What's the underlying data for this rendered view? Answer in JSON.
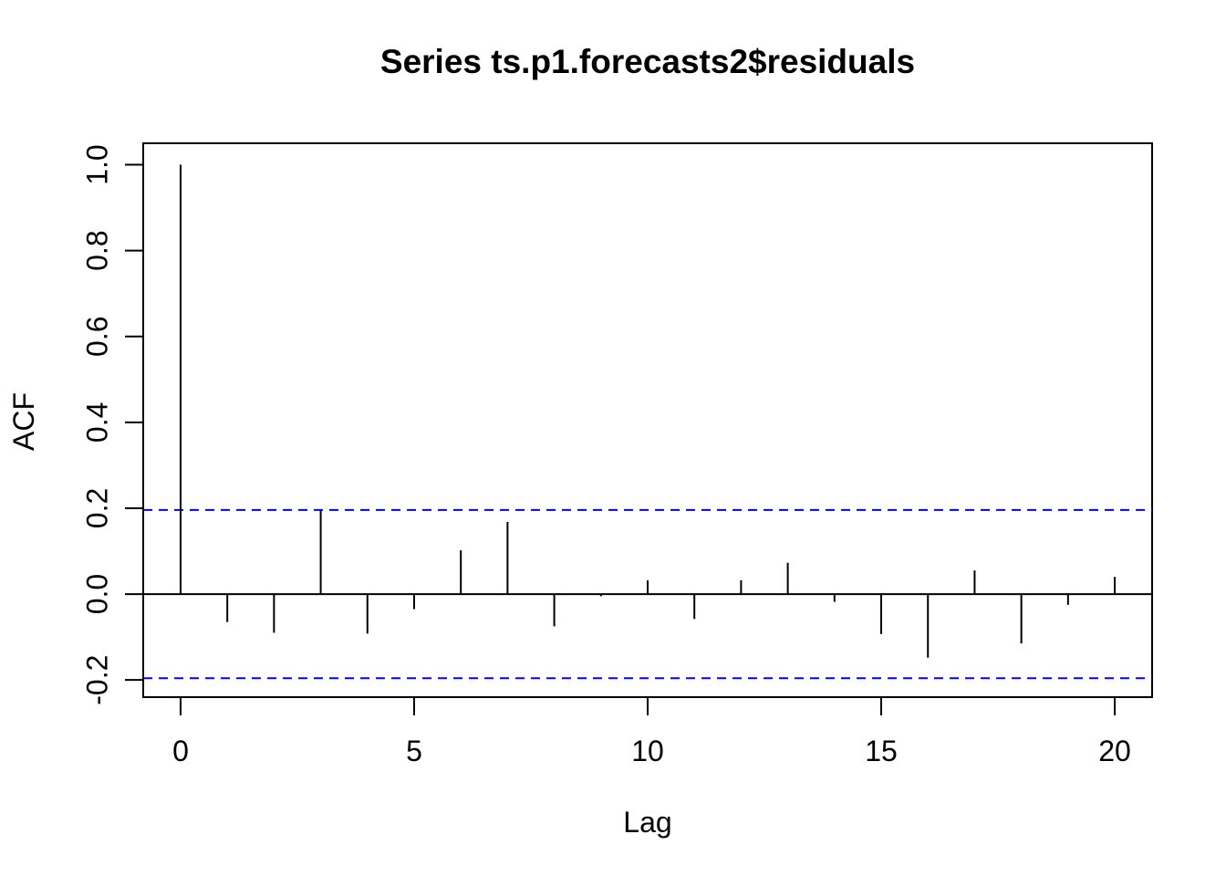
{
  "chart_data": {
    "type": "bar",
    "subtype": "acf-spike",
    "title": "Series  ts.p1.forecasts2$residuals",
    "xlabel": "Lag",
    "ylabel": "ACF",
    "xlim": [
      -0.8,
      20.8
    ],
    "ylim": [
      -0.24,
      1.05
    ],
    "x_ticks": [
      0,
      5,
      10,
      15,
      20
    ],
    "y_ticks": [
      -0.2,
      0.0,
      0.2,
      0.4,
      0.6,
      0.8,
      1.0
    ],
    "x_tick_labels": [
      "0",
      "5",
      "10",
      "15",
      "20"
    ],
    "y_tick_labels": [
      "-0.2",
      "0.0",
      "0.2",
      "0.4",
      "0.6",
      "0.8",
      "1.0"
    ],
    "lags": [
      0,
      1,
      2,
      3,
      4,
      5,
      6,
      7,
      8,
      9,
      10,
      11,
      12,
      13,
      14,
      15,
      16,
      17,
      18,
      19,
      20
    ],
    "values": [
      1.0,
      -0.065,
      -0.09,
      0.195,
      -0.092,
      -0.035,
      0.102,
      0.168,
      -0.075,
      -0.005,
      0.032,
      -0.058,
      0.032,
      0.073,
      -0.018,
      -0.093,
      -0.148,
      0.055,
      -0.115,
      -0.025,
      0.04
    ],
    "confidence_bound": 0.196,
    "zero_line": true,
    "grid": false,
    "legend": "none",
    "colors": {
      "spike": "#000000",
      "confidence": "#0000ff",
      "axis": "#000000"
    }
  }
}
